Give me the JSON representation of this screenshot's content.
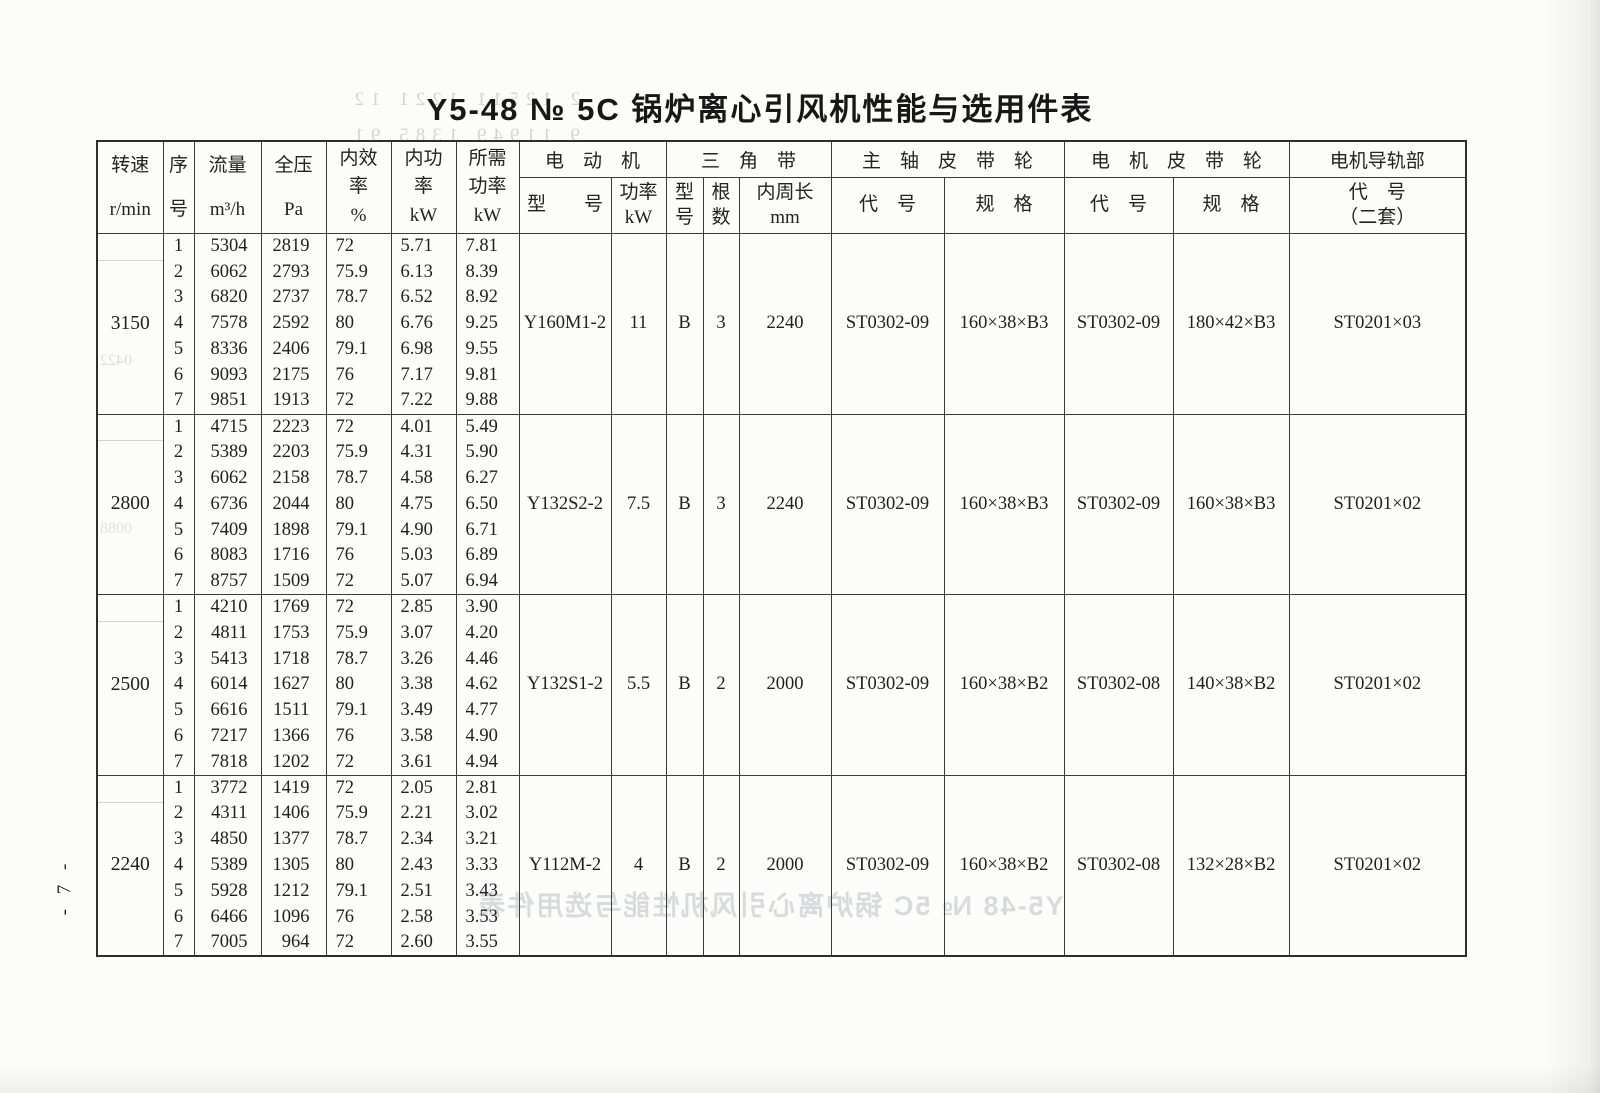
{
  "page": {
    "title": "Y5-48  № 5C  锅炉离心引风机性能与选用件表",
    "number_label": "- 7 -"
  },
  "table": {
    "headers": {
      "speed": "转速\nr/min",
      "seq": "序\n号",
      "flow": "流量\nm³/h",
      "pressure": "全压\nPa",
      "efficiency": "内效\n率\n%",
      "power_internal": "内功\n率\nkW",
      "power_required": "所需\n功率\nkW",
      "motor_group": "电　动　机",
      "motor_model": "型　　号",
      "motor_power": "功率\nkW",
      "belt_group": "三　角　带",
      "belt_model": "型\n号",
      "belt_count": "根\n数",
      "belt_length": "内周长\nmm",
      "shaft_pulley_group": "主　轴　皮　带　轮",
      "shaft_pulley_code": "代　号",
      "shaft_pulley_spec": "规　格",
      "motor_pulley_group": "电　机　皮　带　轮",
      "motor_pulley_code": "代　号",
      "motor_pulley_spec": "规　格",
      "rail_group": "电机导轨部",
      "rail_code_header": "代　号\n（二套）"
    },
    "groups": [
      {
        "speed": "3150",
        "rows": [
          [
            "1",
            "5304",
            "2819",
            "72",
            "5.71",
            "7.81"
          ],
          [
            "2",
            "6062",
            "2793",
            "75.9",
            "6.13",
            "8.39"
          ],
          [
            "3",
            "6820",
            "2737",
            "78.7",
            "6.52",
            "8.92"
          ],
          [
            "4",
            "7578",
            "2592",
            "80",
            "6.76",
            "9.25"
          ],
          [
            "5",
            "8336",
            "2406",
            "79.1",
            "6.98",
            "9.55"
          ],
          [
            "6",
            "9093",
            "2175",
            "76",
            "7.17",
            "9.81"
          ],
          [
            "7",
            "9851",
            "1913",
            "72",
            "7.22",
            "9.88"
          ]
        ],
        "motor_model": "Y160M1-2",
        "motor_power": "11",
        "belt_model": "B",
        "belt_count": "3",
        "belt_length": "2240",
        "shaft_pulley_code": "ST0302-09",
        "shaft_pulley_spec": "160×38×B3",
        "motor_pulley_code": "ST0302-09",
        "motor_pulley_spec": "180×42×B3",
        "rail_code": "ST0201×03"
      },
      {
        "speed": "2800",
        "rows": [
          [
            "1",
            "4715",
            "2223",
            "72",
            "4.01",
            "5.49"
          ],
          [
            "2",
            "5389",
            "2203",
            "75.9",
            "4.31",
            "5.90"
          ],
          [
            "3",
            "6062",
            "2158",
            "78.7",
            "4.58",
            "6.27"
          ],
          [
            "4",
            "6736",
            "2044",
            "80",
            "4.75",
            "6.50"
          ],
          [
            "5",
            "7409",
            "1898",
            "79.1",
            "4.90",
            "6.71"
          ],
          [
            "6",
            "8083",
            "1716",
            "76",
            "5.03",
            "6.89"
          ],
          [
            "7",
            "8757",
            "1509",
            "72",
            "5.07",
            "6.94"
          ]
        ],
        "motor_model": "Y132S2-2",
        "motor_power": "7.5",
        "belt_model": "B",
        "belt_count": "3",
        "belt_length": "2240",
        "shaft_pulley_code": "ST0302-09",
        "shaft_pulley_spec": "160×38×B3",
        "motor_pulley_code": "ST0302-09",
        "motor_pulley_spec": "160×38×B3",
        "rail_code": "ST0201×02"
      },
      {
        "speed": "2500",
        "rows": [
          [
            "1",
            "4210",
            "1769",
            "72",
            "2.85",
            "3.90"
          ],
          [
            "2",
            "4811",
            "1753",
            "75.9",
            "3.07",
            "4.20"
          ],
          [
            "3",
            "5413",
            "1718",
            "78.7",
            "3.26",
            "4.46"
          ],
          [
            "4",
            "6014",
            "1627",
            "80",
            "3.38",
            "4.62"
          ],
          [
            "5",
            "6616",
            "1511",
            "79.1",
            "3.49",
            "4.77"
          ],
          [
            "6",
            "7217",
            "1366",
            "76",
            "3.58",
            "4.90"
          ],
          [
            "7",
            "7818",
            "1202",
            "72",
            "3.61",
            "4.94"
          ]
        ],
        "motor_model": "Y132S1-2",
        "motor_power": "5.5",
        "belt_model": "B",
        "belt_count": "2",
        "belt_length": "2000",
        "shaft_pulley_code": "ST0302-09",
        "shaft_pulley_spec": "160×38×B2",
        "motor_pulley_code": "ST0302-08",
        "motor_pulley_spec": "140×38×B2",
        "rail_code": "ST0201×02"
      },
      {
        "speed": "2240",
        "rows": [
          [
            "1",
            "3772",
            "1419",
            "72",
            "2.05",
            "2.81"
          ],
          [
            "2",
            "4311",
            "1406",
            "75.9",
            "2.21",
            "3.02"
          ],
          [
            "3",
            "4850",
            "1377",
            "78.7",
            "2.34",
            "3.21"
          ],
          [
            "4",
            "5389",
            "1305",
            "80",
            "2.43",
            "3.33"
          ],
          [
            "5",
            "5928",
            "1212",
            "79.1",
            "2.51",
            "3.43"
          ],
          [
            "6",
            "6466",
            "1096",
            "76",
            "2.58",
            "3.53"
          ],
          [
            "7",
            "7005",
            "964",
            "72",
            "2.60",
            "3.55"
          ]
        ],
        "motor_model": "Y112M-2",
        "motor_power": "4",
        "belt_model": "B",
        "belt_count": "2",
        "belt_length": "2000",
        "shaft_pulley_code": "ST0302-09",
        "shaft_pulley_spec": "160×38×B2",
        "motor_pulley_code": "ST0302-08",
        "motor_pulley_spec": "132×28×B2",
        "rail_code": "ST0201×02"
      }
    ]
  },
  "ghosts": {
    "top_numbers": "2  12511  1221  12\n9  11949  1385  91",
    "speed_ghost_1": "0422",
    "speed_ghost_2": "0088",
    "bottom_title": "Y5-48 № 5C 锅炉离心引风机性能与选用件表"
  }
}
